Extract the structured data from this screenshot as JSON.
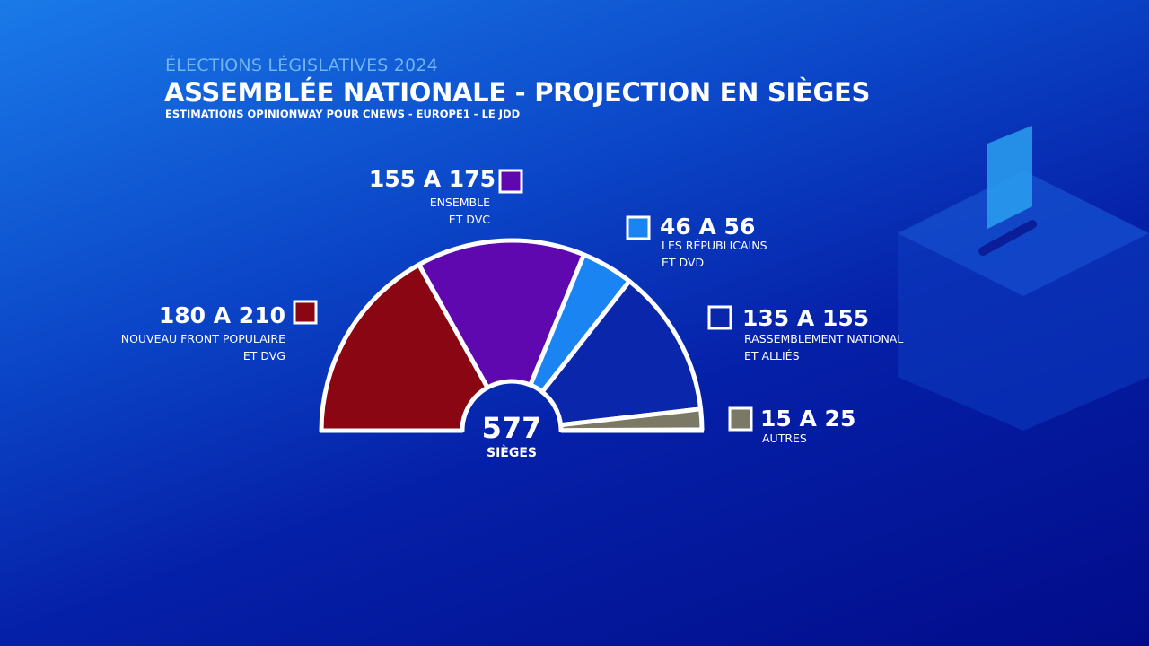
{
  "chart_data": {
    "type": "hemicycle",
    "kicker": "ÉLECTIONS LÉGISLATIVES 2024",
    "title": "ASSEMBLÉE NATIONALE - PROJECTION EN SIÈGES",
    "subtitle": "ESTIMATIONS OPINIONWAY POUR CNEWS - EUROPE1 - LE JDD",
    "categories": [
      "NOUVEAU FRONT POPULAIRE\nET DVG",
      "ENSEMBLE\nET DVC",
      "LES RÉPUBLICAINS\nET DVD",
      "RASSEMBLEMENT NATIONAL\nET ALLIÉS",
      "AUTRES"
    ],
    "low": [
      180,
      155,
      46,
      135,
      15
    ],
    "high": [
      210,
      175,
      56,
      155,
      25
    ],
    "value_labels": [
      "180 A 210",
      "155 A 175",
      "46 A 56",
      "135 A 155",
      "15 A 25"
    ],
    "colors": [
      "#8a0612",
      "#6008b0",
      "#1a84f2",
      "#0a26aa",
      "#7c7866"
    ],
    "total": 577,
    "total_label": "SIÈGES"
  }
}
